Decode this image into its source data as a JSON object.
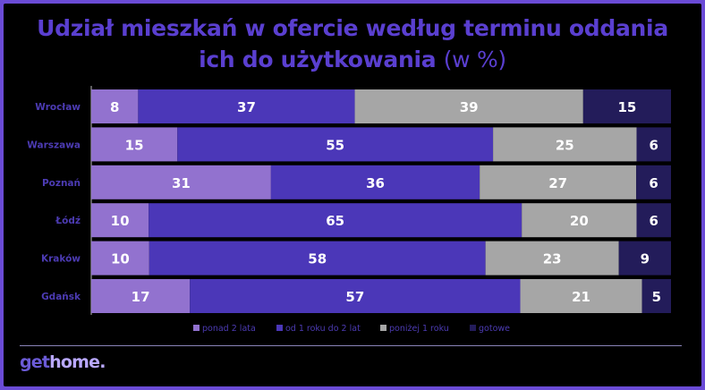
{
  "header": {
    "title_line1": "Udział mieszkań w ofercie według terminu oddania",
    "title_line2": "ich do użytkowania",
    "title_unit": "(w %)"
  },
  "brand": {
    "get": "get",
    "home": "home."
  },
  "chart_data": {
    "type": "bar",
    "orientation": "horizontal",
    "stacked": true,
    "categories": [
      "Wrocław",
      "Warszawa",
      "Poznań",
      "Łódź",
      "Kraków",
      "Gdańsk"
    ],
    "series": [
      {
        "name": "ponad 2 lata",
        "color": "#9272cf",
        "values": [
          8,
          15,
          31,
          10,
          10,
          17
        ]
      },
      {
        "name": "od 1 roku do 2 lat",
        "color": "#4b37b8",
        "values": [
          37,
          55,
          36,
          65,
          58,
          57
        ]
      },
      {
        "name": "poniżej 1 roku",
        "color": "#a6a6a6",
        "values": [
          39,
          25,
          27,
          20,
          23,
          21
        ]
      },
      {
        "name": "gotowe",
        "color": "#231c5a",
        "values": [
          15,
          6,
          6,
          6,
          9,
          5
        ]
      }
    ],
    "legend_position": "bottom",
    "grid": false
  }
}
